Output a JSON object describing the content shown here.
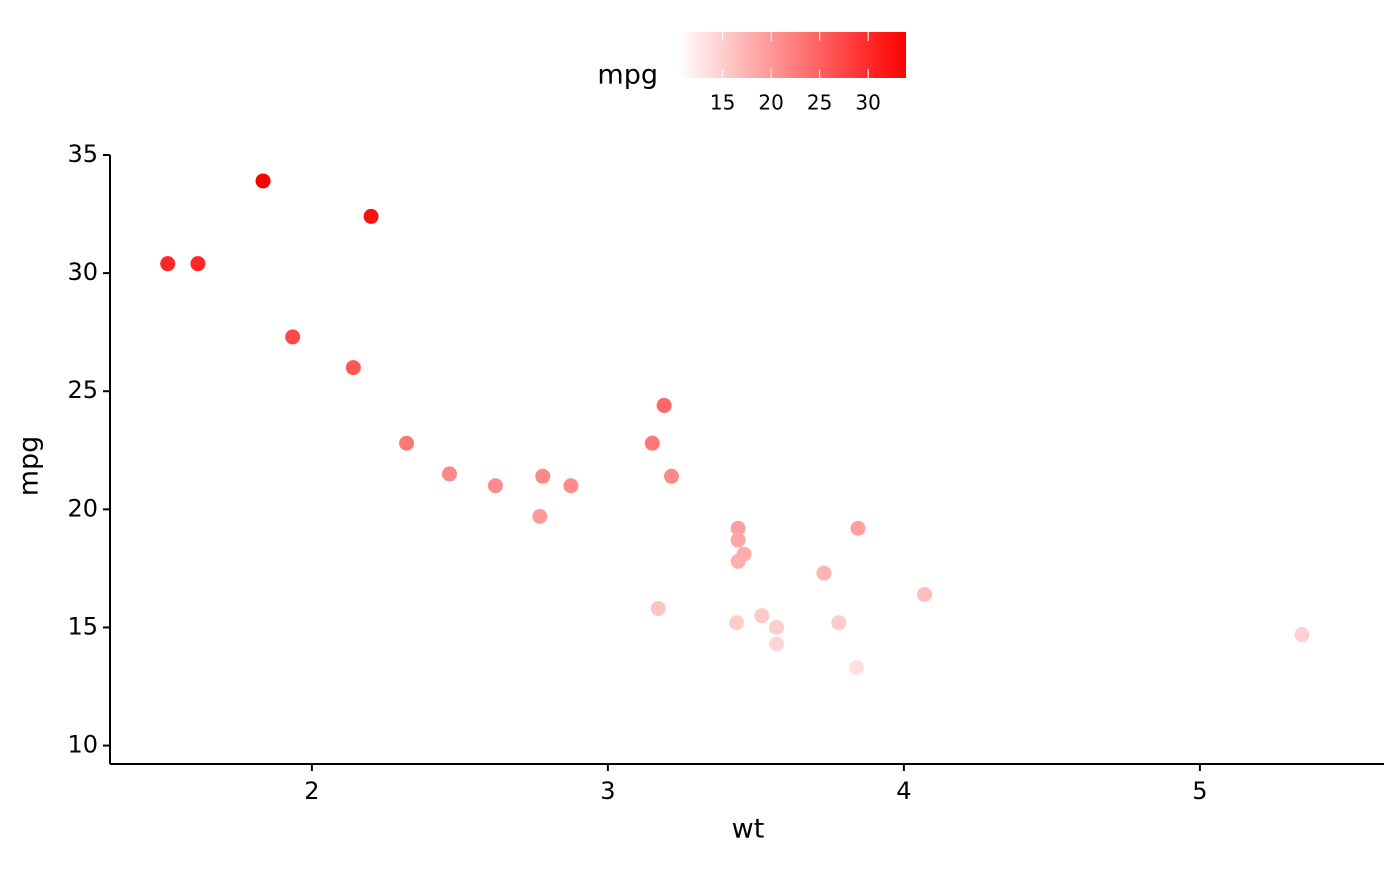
{
  "chart_data": {
    "type": "scatter",
    "x_label": "wt",
    "y_label": "mpg",
    "series": [
      {
        "name": "mpg",
        "x": [
          1.835,
          2.2,
          1.513,
          1.615,
          1.935,
          2.14,
          2.32,
          2.465,
          2.62,
          2.78,
          2.875,
          2.77,
          3.15,
          3.19,
          3.215,
          3.17,
          3.44,
          3.44,
          3.46,
          3.44,
          3.435,
          3.52,
          3.57,
          3.57,
          3.73,
          3.78,
          3.84,
          3.845,
          4.07,
          5.345
        ],
        "values": [
          33.9,
          32.4,
          30.4,
          30.4,
          27.3,
          26.0,
          22.8,
          21.5,
          21.0,
          21.4,
          21.0,
          19.7,
          22.8,
          24.4,
          21.4,
          15.8,
          19.2,
          18.7,
          18.1,
          17.8,
          15.2,
          15.5,
          15.0,
          14.3,
          17.3,
          15.2,
          13.3,
          19.2,
          16.4,
          14.7
        ]
      }
    ],
    "xlim": [
      1.318,
      5.622
    ],
    "xticks": [
      2,
      3,
      4,
      5
    ],
    "ylim": [
      9.22,
      35
    ],
    "yticks": [
      10,
      15,
      20,
      25,
      30,
      35
    ],
    "color_scale": {
      "title": "mpg",
      "range": [
        10.4,
        33.9
      ],
      "low": "#ffffff",
      "high": "#ff0000",
      "ticks": [
        15,
        20,
        25,
        30
      ]
    },
    "grid": false
  }
}
